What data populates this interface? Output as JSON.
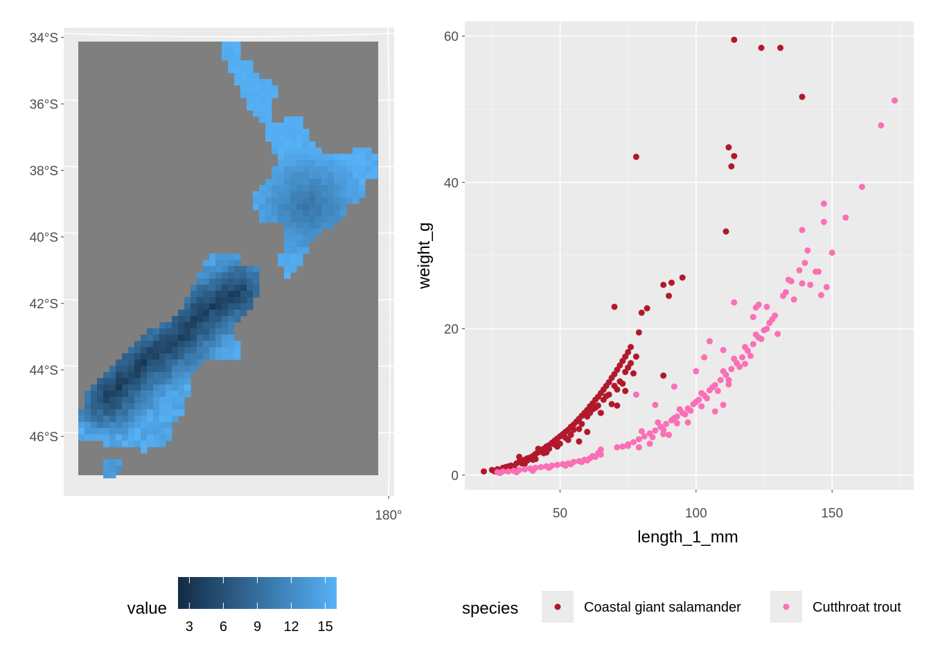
{
  "chart_data": [
    {
      "type": "heatmap",
      "subtype": "raster-map",
      "x_tick_labels": [
        "180°"
      ],
      "y_tick_labels": [
        "34°S",
        "36°S",
        "38°S",
        "40°S",
        "42°S",
        "44°S",
        "46°S"
      ],
      "legend": {
        "title": "value",
        "ticks": [
          "3",
          "6",
          "9",
          "12",
          "15"
        ],
        "range": [
          2,
          16
        ],
        "color_low": "#132b43",
        "color_high": "#56b1f7"
      },
      "background_color": "#7f7f7f",
      "panel_color": "#ebebeb",
      "grid": true
    },
    {
      "type": "scatter",
      "xlabel": "length_1_mm",
      "ylabel": "weight_g",
      "xlim": [
        15,
        180
      ],
      "ylim": [
        -2,
        62
      ],
      "x_ticks": [
        50,
        100,
        150
      ],
      "y_ticks": [
        0,
        20,
        40,
        60
      ],
      "grid": true,
      "legend": {
        "title": "species",
        "position": "bottom"
      },
      "series": [
        {
          "name": "Coastal giant salamander",
          "color": "#b2182b",
          "points": [
            [
              22,
              0.5
            ],
            [
              25,
              0.7
            ],
            [
              27,
              0.8
            ],
            [
              28,
              0.6
            ],
            [
              29,
              1.0
            ],
            [
              30,
              1.1
            ],
            [
              31,
              1.2
            ],
            [
              32,
              1.3
            ],
            [
              33,
              1.2
            ],
            [
              34,
              1.6
            ],
            [
              35,
              1.8
            ],
            [
              36,
              1.9
            ],
            [
              37,
              2.1
            ],
            [
              38,
              2.3
            ],
            [
              39,
              2.4
            ],
            [
              40,
              2.6
            ],
            [
              41,
              2.9
            ],
            [
              42,
              3.1
            ],
            [
              43,
              3.3
            ],
            [
              44,
              3.6
            ],
            [
              45,
              3.9
            ],
            [
              46,
              4.1
            ],
            [
              47,
              4.4
            ],
            [
              48,
              4.7
            ],
            [
              49,
              5.0
            ],
            [
              50,
              5.3
            ],
            [
              51,
              5.6
            ],
            [
              52,
              5.9
            ],
            [
              53,
              6.2
            ],
            [
              54,
              6.6
            ],
            [
              55,
              6.9
            ],
            [
              56,
              7.3
            ],
            [
              57,
              7.7
            ],
            [
              58,
              8.1
            ],
            [
              59,
              8.5
            ],
            [
              60,
              8.9
            ],
            [
              61,
              9.4
            ],
            [
              62,
              9.8
            ],
            [
              63,
              10.3
            ],
            [
              64,
              10.7
            ],
            [
              65,
              11.2
            ],
            [
              66,
              11.7
            ],
            [
              67,
              12.2
            ],
            [
              68,
              12.7
            ],
            [
              69,
              13.3
            ],
            [
              70,
              13.8
            ],
            [
              71,
              14.4
            ],
            [
              72,
              15.0
            ],
            [
              73,
              15.6
            ],
            [
              74,
              16.2
            ],
            [
              75,
              16.8
            ],
            [
              76,
              17.5
            ],
            [
              35,
              2.5
            ],
            [
              38,
              2.0
            ],
            [
              42,
              3.6
            ],
            [
              44,
              3.0
            ],
            [
              48,
              4.2
            ],
            [
              52,
              5.1
            ],
            [
              55,
              6.2
            ],
            [
              58,
              7.0
            ],
            [
              60,
              8.0
            ],
            [
              62,
              9.0
            ],
            [
              64,
              9.5
            ],
            [
              66,
              10.3
            ],
            [
              68,
              11.0
            ],
            [
              70,
              12.2
            ],
            [
              72,
              12.8
            ],
            [
              74,
              14.1
            ],
            [
              76,
              15.3
            ],
            [
              78,
              16.2
            ],
            [
              26,
              0.5
            ],
            [
              30,
              0.8
            ],
            [
              33,
              0.9
            ],
            [
              37,
              1.5
            ],
            [
              40,
              2.1
            ],
            [
              46,
              3.6
            ],
            [
              50,
              4.3
            ],
            [
              54,
              5.5
            ],
            [
              57,
              6.3
            ],
            [
              61,
              8.5
            ],
            [
              63,
              9.2
            ],
            [
              67,
              10.8
            ],
            [
              71,
              11.7
            ],
            [
              73,
              12.5
            ],
            [
              75,
              14.7
            ],
            [
              65,
              8.5
            ],
            [
              69,
              9.7
            ],
            [
              70,
              23.0
            ],
            [
              78,
              43.5
            ],
            [
              79,
              19.5
            ],
            [
              80,
              22.2
            ],
            [
              82,
              22.8
            ],
            [
              88,
              13.6
            ],
            [
              88,
              26.0
            ],
            [
              90,
              24.5
            ],
            [
              91,
              26.3
            ],
            [
              95,
              27.0
            ],
            [
              111,
              33.3
            ],
            [
              112,
              44.8
            ],
            [
              113,
              42.2
            ],
            [
              114,
              43.6
            ],
            [
              114,
              59.5
            ],
            [
              124,
              58.4
            ],
            [
              131,
              58.4
            ],
            [
              139,
              51.7
            ],
            [
              71,
              9.5
            ],
            [
              74,
              11.5
            ],
            [
              77,
              13.9
            ],
            [
              60,
              5.9
            ],
            [
              57,
              4.6
            ],
            [
              53,
              4.8
            ],
            [
              49,
              3.9
            ],
            [
              45,
              3.1
            ],
            [
              41,
              2.2
            ],
            [
              36,
              1.6
            ],
            [
              32,
              1.0
            ]
          ]
        },
        {
          "name": "Cutthroat trout",
          "color": "#fb6fb5",
          "points": [
            [
              27,
              0.4
            ],
            [
              29,
              0.5
            ],
            [
              31,
              0.5
            ],
            [
              33,
              0.6
            ],
            [
              35,
              0.7
            ],
            [
              37,
              0.8
            ],
            [
              39,
              0.9
            ],
            [
              41,
              1.0
            ],
            [
              43,
              1.1
            ],
            [
              45,
              1.2
            ],
            [
              47,
              1.3
            ],
            [
              49,
              1.4
            ],
            [
              51,
              1.5
            ],
            [
              53,
              1.6
            ],
            [
              55,
              1.8
            ],
            [
              57,
              1.9
            ],
            [
              59,
              2.1
            ],
            [
              61,
              2.3
            ],
            [
              63,
              2.5
            ],
            [
              65,
              2.8
            ],
            [
              65,
              3.5
            ],
            [
              73,
              3.9
            ],
            [
              75,
              4.2
            ],
            [
              77,
              4.5
            ],
            [
              79,
              4.9
            ],
            [
              81,
              5.3
            ],
            [
              83,
              5.7
            ],
            [
              85,
              6.1
            ],
            [
              87,
              6.6
            ],
            [
              89,
              7.0
            ],
            [
              91,
              7.5
            ],
            [
              93,
              8.0
            ],
            [
              95,
              8.5
            ],
            [
              97,
              9.1
            ],
            [
              99,
              9.7
            ],
            [
              101,
              10.3
            ],
            [
              103,
              10.9
            ],
            [
              105,
              11.6
            ],
            [
              107,
              12.3
            ],
            [
              109,
              13.0
            ],
            [
              111,
              13.7
            ],
            [
              113,
              14.5
            ],
            [
              115,
              15.3
            ],
            [
              117,
              16.1
            ],
            [
              119,
              17.0
            ],
            [
              121,
              17.9
            ],
            [
              123,
              18.8
            ],
            [
              125,
              19.8
            ],
            [
              127,
              20.8
            ],
            [
              129,
              21.8
            ],
            [
              80,
              6.0
            ],
            [
              84,
              5.2
            ],
            [
              86,
              7.2
            ],
            [
              88,
              6.2
            ],
            [
              90,
              5.5
            ],
            [
              92,
              7.8
            ],
            [
              94,
              9.0
            ],
            [
              96,
              8.3
            ],
            [
              98,
              8.8
            ],
            [
              100,
              10.0
            ],
            [
              102,
              11.2
            ],
            [
              104,
              10.5
            ],
            [
              106,
              12.0
            ],
            [
              108,
              11.5
            ],
            [
              110,
              14.2
            ],
            [
              112,
              13.0
            ],
            [
              114,
              15.9
            ],
            [
              116,
              14.8
            ],
            [
              118,
              17.5
            ],
            [
              120,
              16.3
            ],
            [
              122,
              19.2
            ],
            [
              124,
              18.6
            ],
            [
              126,
              20.0
            ],
            [
              128,
              21.3
            ],
            [
              130,
              19.3
            ],
            [
              78,
              11.0
            ],
            [
              85,
              9.6
            ],
            [
              92,
              12.1
            ],
            [
              100,
              14.2
            ],
            [
              103,
              16.1
            ],
            [
              105,
              18.3
            ],
            [
              110,
              17.1
            ],
            [
              112,
              12.4
            ],
            [
              114,
              23.6
            ],
            [
              118,
              15.2
            ],
            [
              121,
              21.6
            ],
            [
              122,
              22.9
            ],
            [
              123,
              23.3
            ],
            [
              126,
              23.0
            ],
            [
              132,
              24.5
            ],
            [
              133,
              25.0
            ],
            [
              134,
              26.7
            ],
            [
              135,
              26.5
            ],
            [
              136,
              24.0
            ],
            [
              138,
              28.0
            ],
            [
              139,
              33.5
            ],
            [
              139,
              26.2
            ],
            [
              140,
              29.0
            ],
            [
              141,
              30.7
            ],
            [
              142,
              26.0
            ],
            [
              144,
              27.8
            ],
            [
              145,
              27.8
            ],
            [
              146,
              24.6
            ],
            [
              147,
              37.1
            ],
            [
              147,
              34.6
            ],
            [
              148,
              25.7
            ],
            [
              150,
              30.4
            ],
            [
              155,
              35.2
            ],
            [
              161,
              39.4
            ],
            [
              168,
              47.8
            ],
            [
              173,
              51.2
            ],
            [
              110,
              9.6
            ],
            [
              107,
              8.7
            ],
            [
              102,
              9.4
            ],
            [
              97,
              7.2
            ],
            [
              93,
              7.1
            ],
            [
              88,
              5.6
            ],
            [
              83,
              4.3
            ],
            [
              79,
              3.8
            ],
            [
              75,
              4.0
            ],
            [
              71,
              3.8
            ],
            [
              62,
              2.6
            ],
            [
              58,
              1.8
            ],
            [
              52,
              1.3
            ],
            [
              46,
              1.0
            ],
            [
              40,
              0.6
            ],
            [
              34,
              0.4
            ],
            [
              28,
              0.3
            ],
            [
              54,
              1.5
            ],
            [
              60,
              2.0
            ],
            [
              64,
              3.0
            ]
          ]
        }
      ]
    }
  ]
}
